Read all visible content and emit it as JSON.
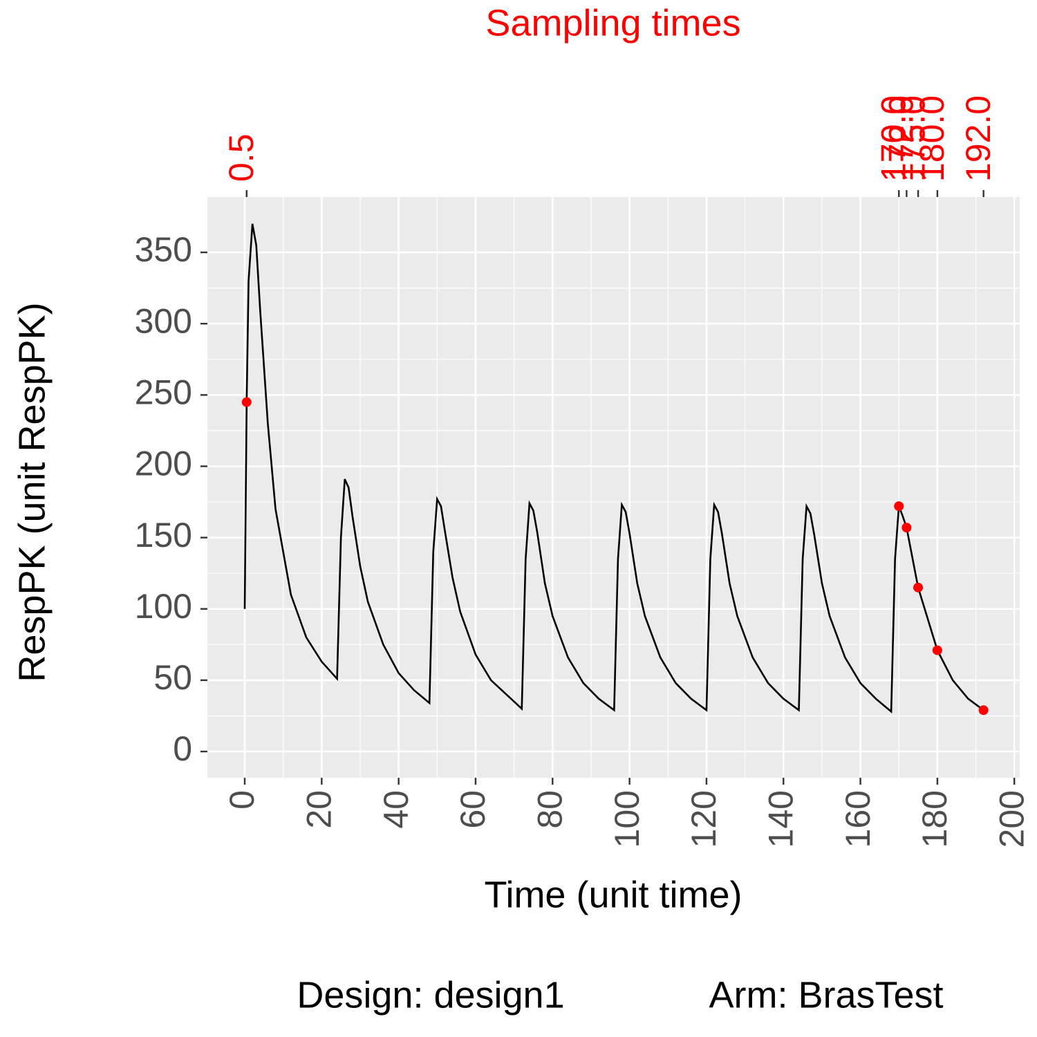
{
  "chart_data": {
    "type": "line",
    "title": "Sampling times",
    "x_label": "Time (unit time)",
    "y_label": "RespPK (unit RespPK)",
    "captions": [
      "Design: design1",
      "Arm: BrasTest"
    ],
    "xlim": [
      -9.7,
      201.4
    ],
    "ylim": [
      -18.4,
      388.8
    ],
    "xticks": [
      0,
      20,
      40,
      60,
      80,
      100,
      120,
      140,
      160,
      180,
      200
    ],
    "yticks": [
      0,
      50,
      100,
      150,
      200,
      250,
      300,
      350
    ],
    "x2ticks": [
      {
        "value": 0.5,
        "label": "0.5"
      },
      {
        "value": 170,
        "label": "170.0"
      },
      {
        "value": 172,
        "label": "172.0"
      },
      {
        "value": 175,
        "label": "175.0"
      },
      {
        "value": 180,
        "label": "180.0"
      },
      {
        "value": 192,
        "label": "192.0"
      }
    ],
    "grid": true,
    "x": [
      0,
      0.5,
      1,
      2,
      3,
      4,
      6,
      8,
      12,
      16,
      20,
      24,
      25,
      26,
      27,
      28,
      30,
      32,
      36,
      40,
      44,
      48,
      49,
      50,
      51,
      52,
      54,
      56,
      60,
      64,
      68,
      72,
      73,
      74,
      75,
      76,
      78,
      80,
      84,
      88,
      92,
      96,
      97,
      98,
      99,
      100,
      102,
      104,
      108,
      112,
      116,
      120,
      121,
      122,
      123,
      124,
      126,
      128,
      132,
      136,
      140,
      144,
      145,
      146,
      147,
      148,
      150,
      152,
      156,
      160,
      164,
      168,
      169,
      170,
      171,
      172,
      175,
      180,
      184,
      188,
      192
    ],
    "series": [
      {
        "color": "#000000",
        "values": [
          100,
          245,
          330,
          370,
          355,
          310,
          230,
          170,
          110,
          80,
          63,
          51,
          150,
          191,
          185,
          165,
          130,
          105,
          75,
          55,
          43,
          34,
          140,
          177,
          172,
          155,
          122,
          98,
          68,
          50,
          40,
          30,
          135,
          174,
          169,
          154,
          118,
          95,
          66,
          48,
          37,
          29,
          135,
          173,
          168,
          153,
          118,
          95,
          66,
          48,
          37,
          29,
          135,
          173,
          168,
          153,
          118,
          95,
          66,
          48,
          37,
          29,
          135,
          172,
          167,
          152,
          118,
          95,
          66,
          48,
          37,
          28,
          135,
          172,
          165,
          157,
          115,
          71,
          50,
          37,
          29
        ]
      }
    ],
    "points": {
      "color": "#ff0000",
      "x": [
        0.5,
        170,
        172,
        175,
        180,
        192
      ],
      "values": [
        245,
        172,
        157,
        115,
        71,
        29
      ]
    }
  }
}
